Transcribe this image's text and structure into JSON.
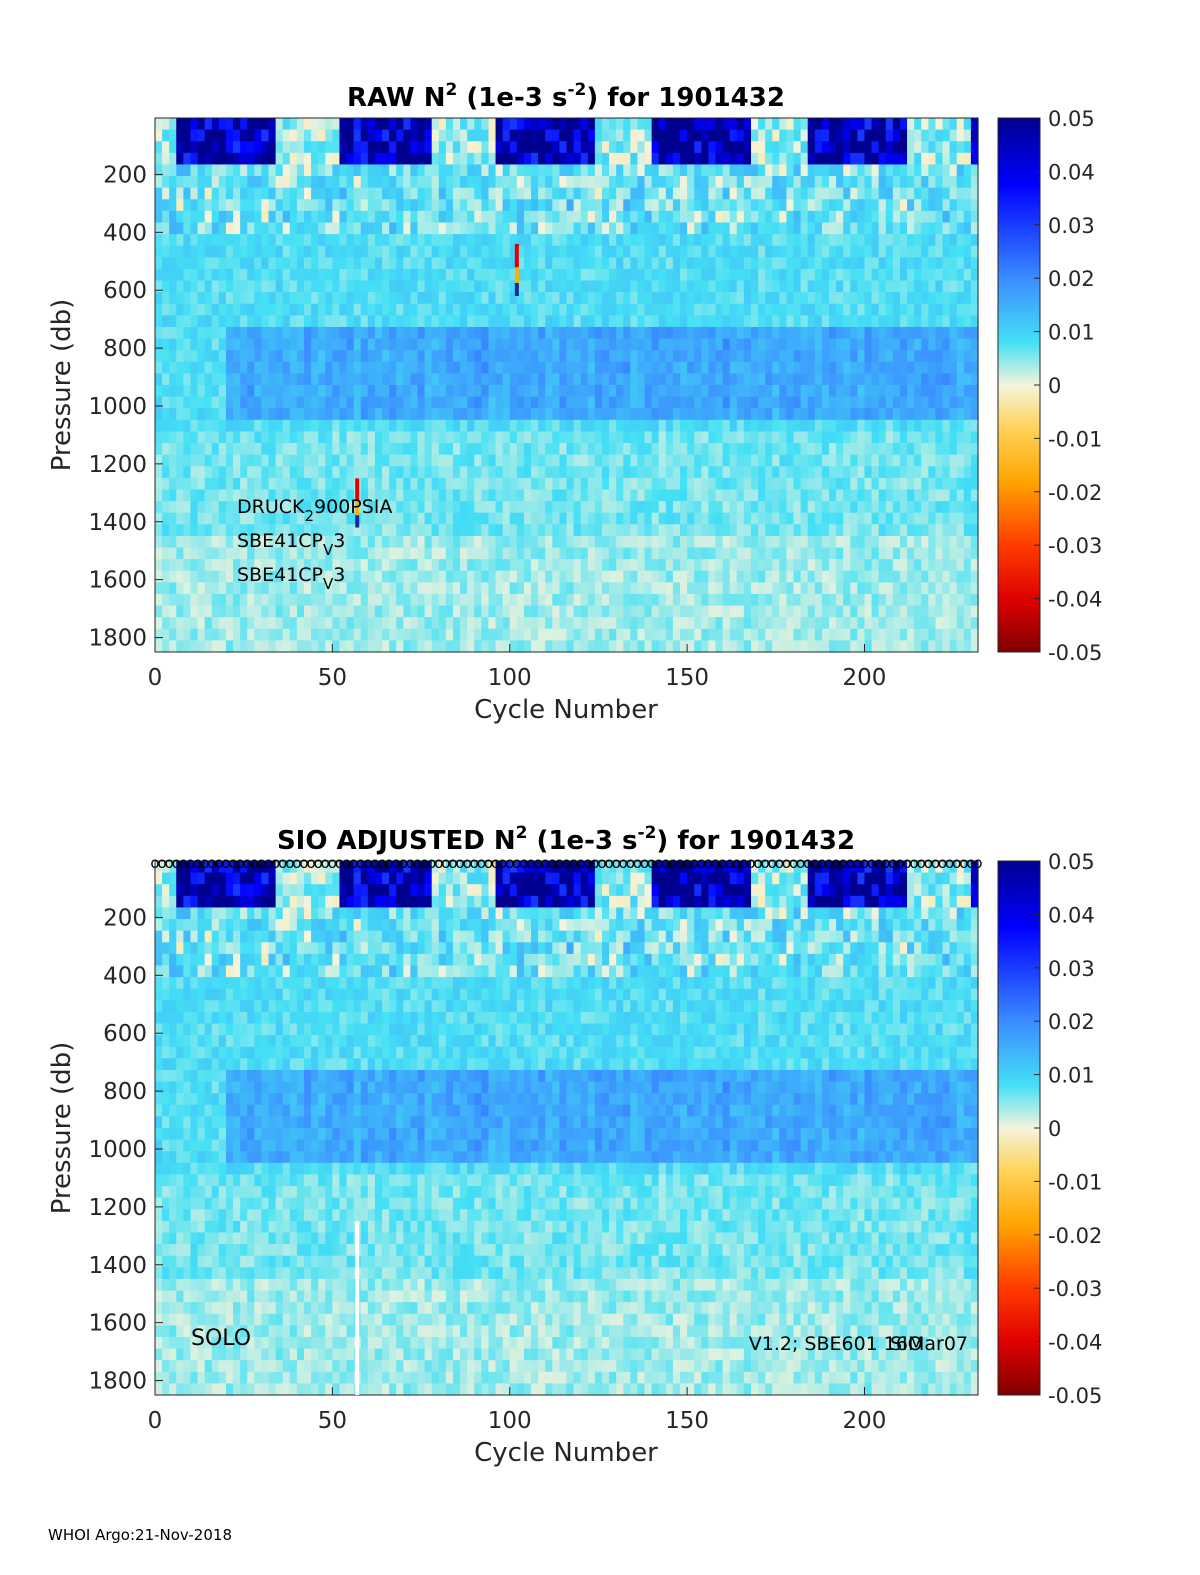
{
  "footer": "WHOI Argo:21-Nov-2018",
  "colors": {
    "accent": "#0b0b8f",
    "anomaly": "#ff0000"
  },
  "chart_data": [
    {
      "type": "heatmap",
      "title": {
        "prefix": "RAW N",
        "sup": "2",
        "mid": " (1e-3 s",
        "sup2": "-2",
        "suffix": ") for 1901432"
      },
      "xlabel": "Cycle Number",
      "ylabel": "Pressure (db)",
      "xlim": [
        0,
        232
      ],
      "ylim": [
        1850,
        5
      ],
      "xticks": [
        "0",
        "50",
        "100",
        "150",
        "200"
      ],
      "yticks": [
        "200",
        "400",
        "600",
        "800",
        "1000",
        "1200",
        "1400",
        "1600",
        "1800"
      ],
      "colorbar": {
        "range": [
          -0.05,
          0.05
        ],
        "ticks": [
          "0.05",
          "0.04",
          "0.03",
          "0.02",
          "0.01",
          "0",
          "-0.01",
          "-0.02",
          "-0.03",
          "-0.04",
          "-0.05"
        ]
      },
      "sensor_labels": [
        "DRUCK",
        "2",
        "900PSIA",
        "SBE41CP",
        "V",
        "3",
        "SBE41CP",
        "V",
        "3"
      ],
      "anomalies": [
        {
          "cycle": 102,
          "pmin": 440,
          "pmax": 620,
          "value": -0.04
        },
        {
          "cycle": 57,
          "pmin": 1250,
          "pmax": 1420,
          "value": -0.04
        }
      ]
    },
    {
      "type": "heatmap",
      "title": {
        "prefix": "SIO  ADJUSTED N",
        "sup": "2",
        "mid": " (1e-3 s",
        "sup2": "-2",
        "suffix": ") for 1901432"
      },
      "xlabel": "Cycle Number",
      "ylabel": "Pressure (db)",
      "xlim": [
        0,
        232
      ],
      "ylim": [
        1850,
        5
      ],
      "xticks": [
        "0",
        "50",
        "100",
        "150",
        "200"
      ],
      "yticks": [
        "200",
        "400",
        "600",
        "800",
        "1000",
        "1200",
        "1400",
        "1600",
        "1800"
      ],
      "colorbar": {
        "range": [
          -0.05,
          0.05
        ],
        "ticks": [
          "0.05",
          "0.04",
          "0.03",
          "0.02",
          "0.01",
          "0",
          "-0.01",
          "-0.02",
          "-0.03",
          "-0.04",
          "-0.05"
        ]
      },
      "float_type": "SOLO",
      "firmware_label": "V1.2; SBE601 16Mar07",
      "firmware_overlap": "SIO",
      "qc_marker_symbol": "o",
      "gap": {
        "cycle": 57,
        "pmin": 1250,
        "pmax": 1850
      }
    }
  ]
}
